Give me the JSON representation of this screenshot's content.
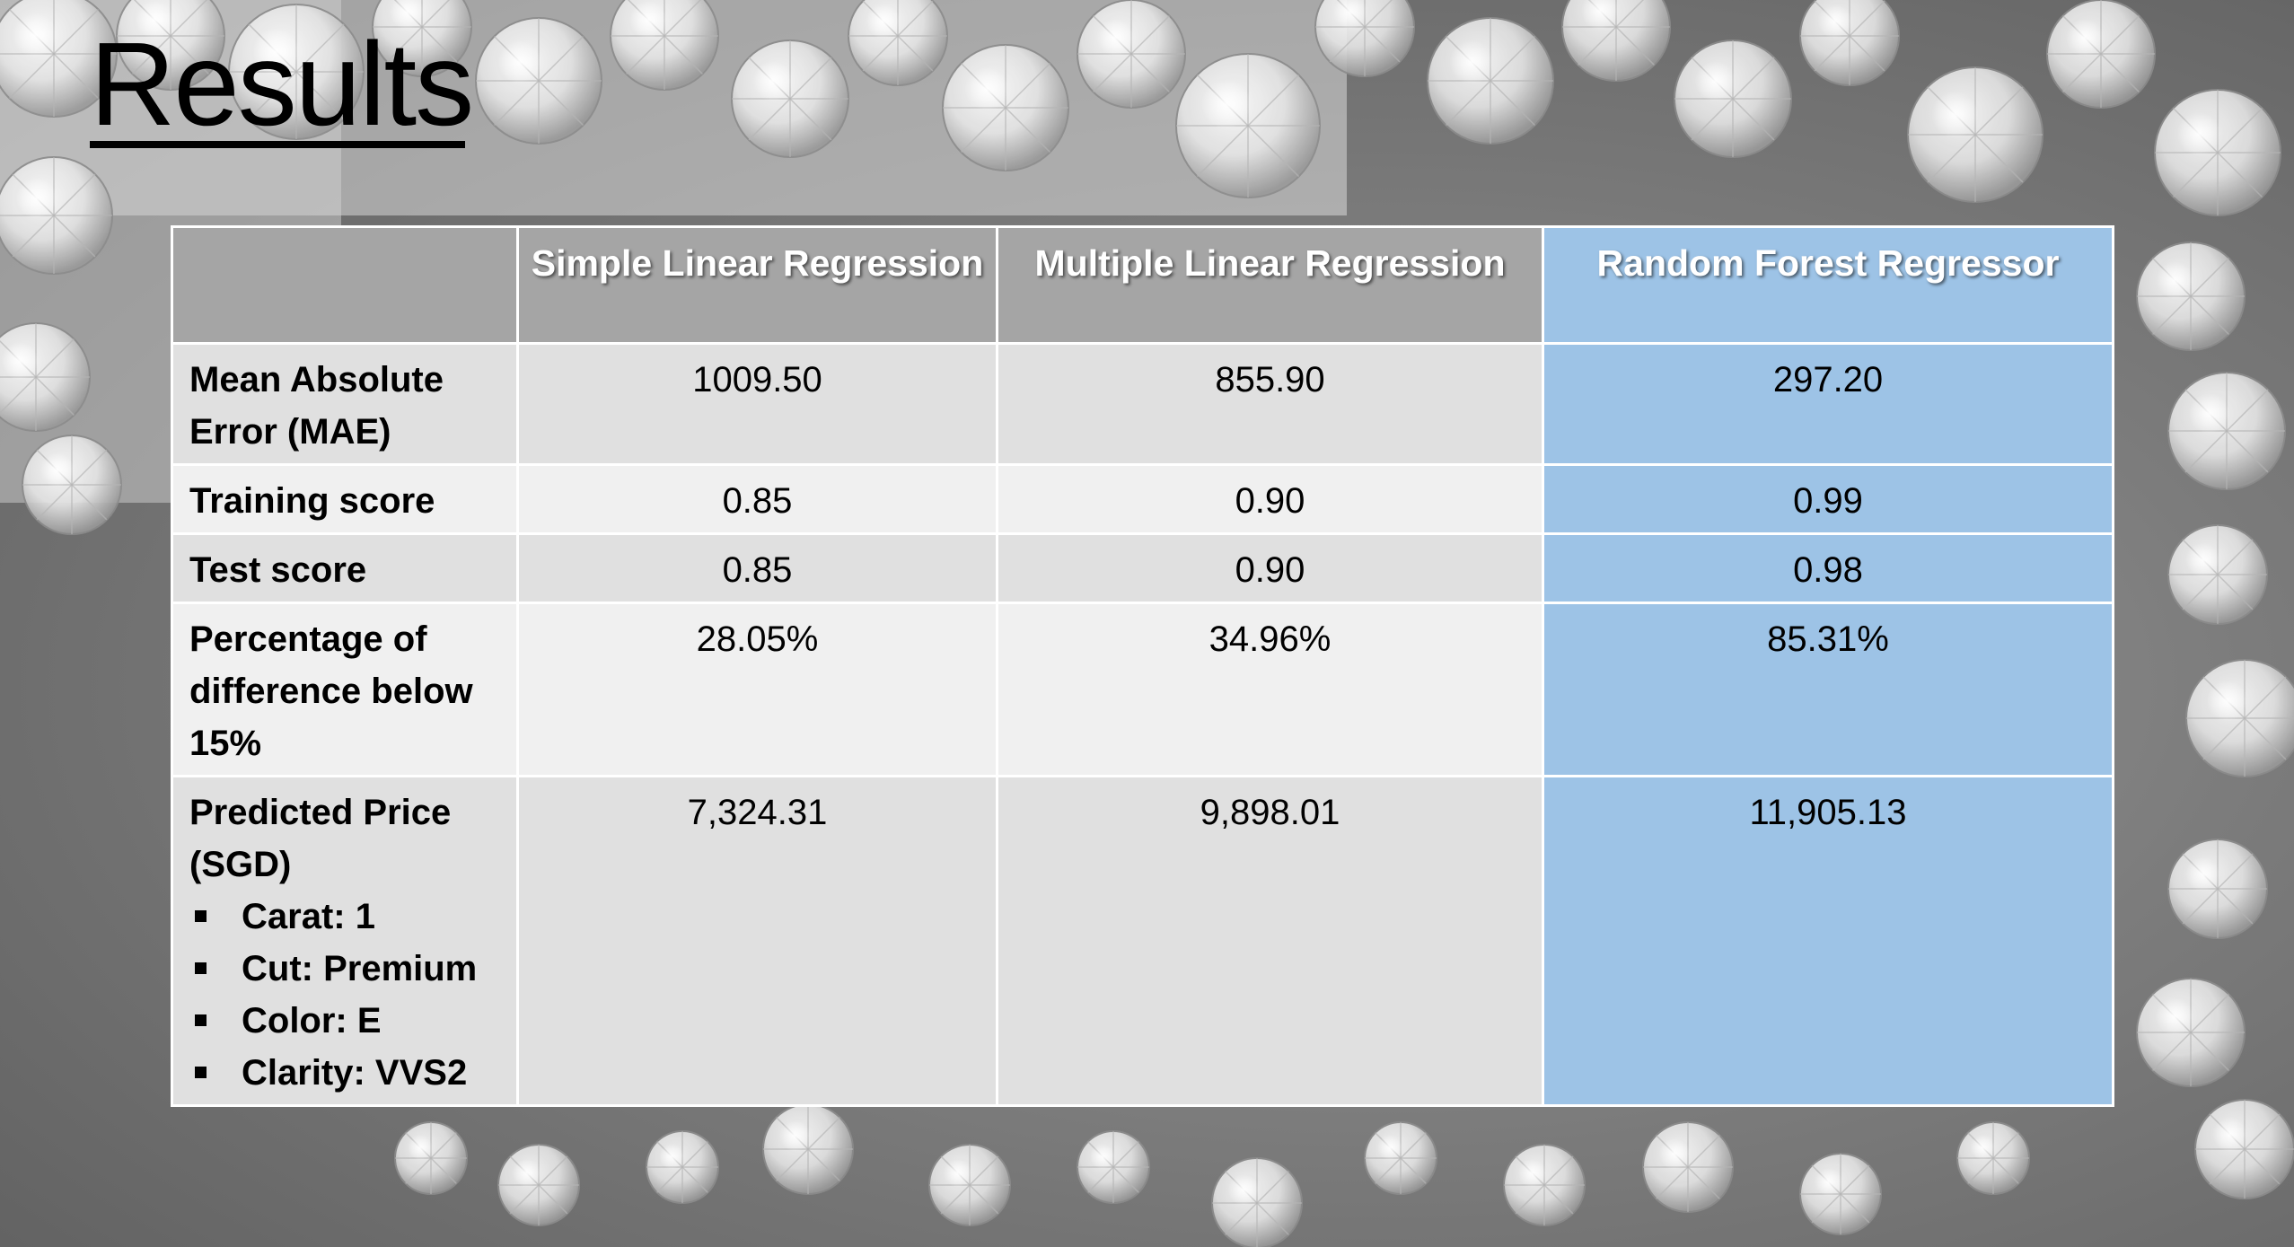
{
  "slide": {
    "title": "Results"
  },
  "table": {
    "columns": [
      "",
      "Simple Linear Regression",
      "Multiple Linear Regression",
      "Random Forest Regressor"
    ],
    "highlighted_column": "Random Forest Regressor",
    "rows": [
      {
        "label": "Mean Absolute Error (MAE)",
        "values": [
          "1009.50",
          "855.90",
          "297.20"
        ]
      },
      {
        "label": "Training score",
        "values": [
          "0.85",
          "0.90",
          "0.99"
        ]
      },
      {
        "label": "Test score",
        "values": [
          "0.85",
          "0.90",
          "0.98"
        ]
      },
      {
        "label": "Percentage of difference below 15%",
        "values": [
          "28.05%",
          "34.96%",
          "85.31%"
        ]
      },
      {
        "label": "Predicted Price (SGD)",
        "specs": [
          "Carat: 1",
          "Cut: Premium",
          "Color: E",
          "Clarity: VVS2"
        ],
        "values": [
          "7,324.31",
          "9,898.01",
          "11,905.13"
        ]
      }
    ]
  },
  "colors": {
    "header_gray": "#a5a5a5",
    "highlight_blue": "#9dc3e6",
    "row_dark": "#e0e0e0",
    "row_light": "#f0f0f0"
  }
}
